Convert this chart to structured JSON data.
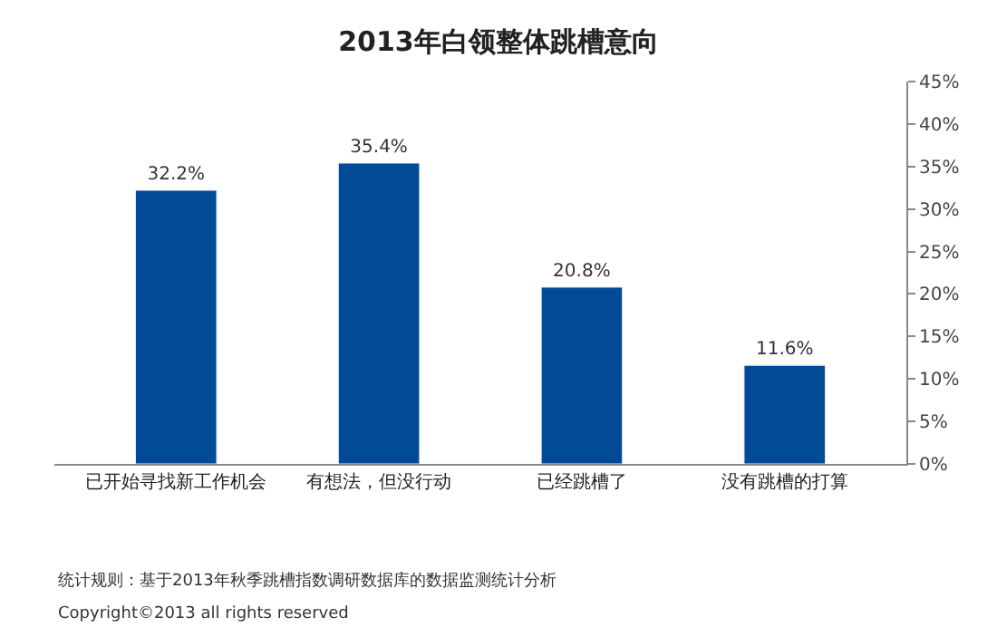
{
  "chart_data": {
    "type": "bar",
    "title": "2013年白领整体跳槽意向",
    "categories": [
      "已开始寻找新工作机会",
      "有想法，但没行动",
      "已经跳槽了",
      "没有跳槽的打算"
    ],
    "values": [
      32.2,
      35.4,
      20.8,
      11.6
    ],
    "value_labels": [
      "32.2%",
      "35.4%",
      "20.8%",
      "11.6%"
    ],
    "color": "#004a98",
    "ylim": [
      0,
      45
    ],
    "yticks": [
      {
        "value": 0,
        "label": "0%"
      },
      {
        "value": 5,
        "label": "5%"
      },
      {
        "value": 10,
        "label": "10%"
      },
      {
        "value": 15,
        "label": "15%"
      },
      {
        "value": 20,
        "label": "20%"
      },
      {
        "value": 25,
        "label": "25%"
      },
      {
        "value": 30,
        "label": "30%"
      },
      {
        "value": 35,
        "label": "35%"
      },
      {
        "value": 40,
        "label": "40%"
      },
      {
        "value": 45,
        "label": "45%"
      }
    ],
    "legend": false,
    "annotations": [
      "统计规则：基于2013年秋季跳槽指数调研数据库的数据监测统计分析",
      "Copyright©2013 all rights reserved"
    ]
  }
}
